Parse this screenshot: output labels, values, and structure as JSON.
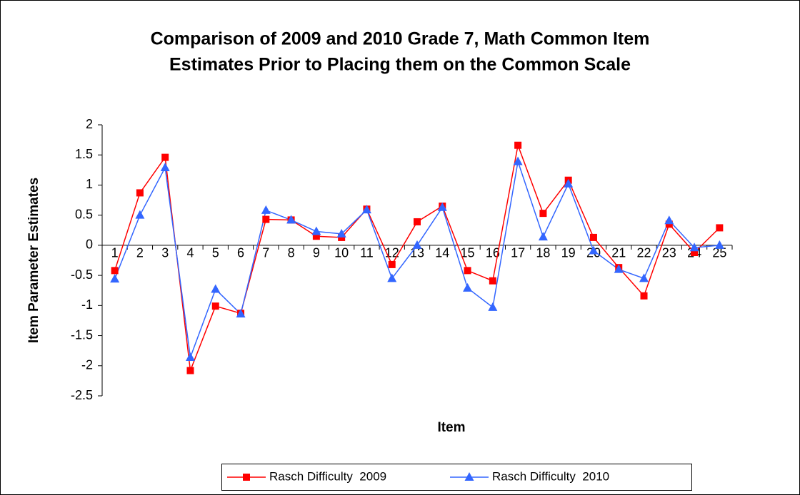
{
  "chart_data": {
    "type": "line",
    "title": [
      "Comparison of 2009 and 2010 Grade 7, Math Common Item",
      "Estimates Prior to Placing them on the Common Scale"
    ],
    "x_label": "Item",
    "y_label": "Item Parameter Estimates",
    "categories": [
      1,
      2,
      3,
      4,
      5,
      6,
      7,
      8,
      9,
      10,
      11,
      12,
      13,
      14,
      15,
      16,
      17,
      18,
      19,
      20,
      21,
      22,
      23,
      24,
      25
    ],
    "series": [
      {
        "name": "Rasch Difficulty  2009",
        "color": "#ff0000",
        "marker": "square",
        "values": [
          -0.42,
          0.87,
          1.46,
          -2.08,
          -1.01,
          -1.13,
          0.43,
          0.42,
          0.15,
          0.13,
          0.6,
          -0.32,
          0.39,
          0.65,
          -0.42,
          -0.59,
          1.66,
          0.53,
          1.08,
          0.13,
          -0.37,
          -0.84,
          0.35,
          -0.12,
          0.29
        ]
      },
      {
        "name": "Rasch Difficulty  2010",
        "color": "#3366ff",
        "marker": "triangle",
        "values": [
          -0.56,
          0.5,
          1.29,
          -1.86,
          -0.73,
          -1.14,
          0.58,
          0.42,
          0.23,
          0.19,
          0.59,
          -0.55,
          0.0,
          0.63,
          -0.71,
          -1.03,
          1.39,
          0.14,
          1.02,
          -0.09,
          -0.4,
          -0.55,
          0.41,
          -0.04,
          0.0
        ]
      }
    ],
    "ylim": [
      -2.5,
      2
    ],
    "yticks": [
      -2.5,
      -2,
      -1.5,
      -1,
      -0.5,
      0,
      0.5,
      1,
      1.5,
      2
    ],
    "grid": false,
    "legend": "bottom"
  }
}
